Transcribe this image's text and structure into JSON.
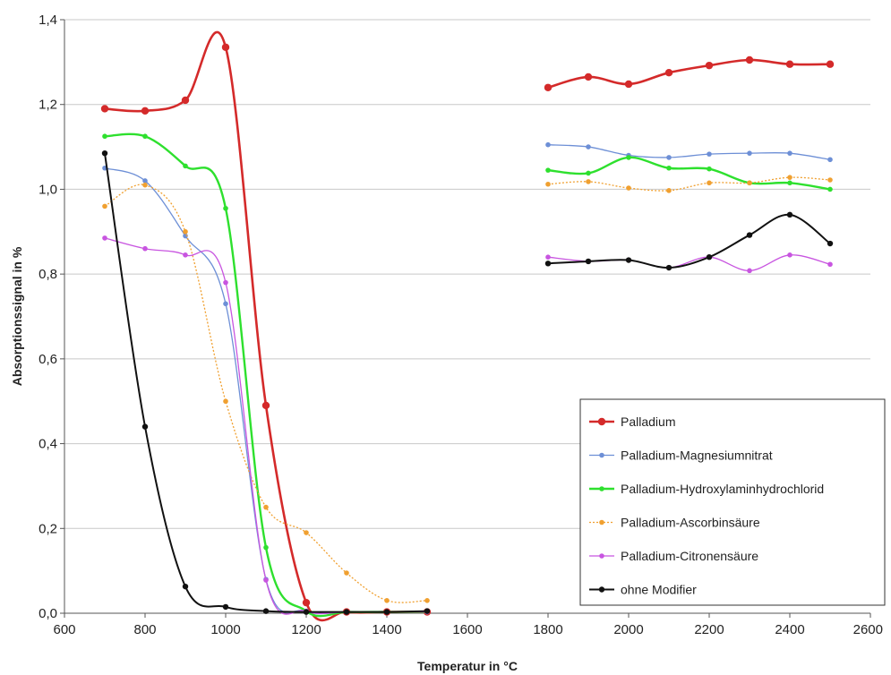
{
  "chart_data": {
    "type": "line",
    "title": "",
    "xlabel": "Temperatur in °C",
    "ylabel": "Absorptionssignal in %",
    "xlim": [
      600,
      2600
    ],
    "ylim": [
      0,
      1.4
    ],
    "x_ticks": [
      600,
      800,
      1000,
      1200,
      1400,
      1600,
      1800,
      2000,
      2200,
      2400,
      2600
    ],
    "x_tick_labels": [
      "600",
      "800",
      "1000",
      "1200",
      "1400",
      "1600",
      "1800",
      "2000",
      "2200",
      "2400",
      "2600"
    ],
    "y_ticks": [
      0,
      0.2,
      0.4,
      0.6,
      0.8,
      1.0,
      1.2,
      1.4
    ],
    "y_tick_labels": [
      "0,0",
      "0,2",
      "0,4",
      "0,6",
      "0,8",
      "1,0",
      "1,2",
      "1,4"
    ],
    "grid": "horizontal",
    "legend_position": "bottom-right",
    "smooth": true,
    "series": [
      {
        "name": "Palladium",
        "color": "#d42a2a",
        "segments": [
          [
            [
              700,
              1.19
            ],
            [
              800,
              1.185
            ],
            [
              900,
              1.21
            ],
            [
              1000,
              1.335
            ],
            [
              1100,
              0.49
            ],
            [
              1200,
              0.025
            ],
            [
              1300,
              0.003
            ],
            [
              1400,
              0.003
            ],
            [
              1500,
              0.003
            ]
          ],
          [
            [
              1800,
              1.24
            ],
            [
              1900,
              1.265
            ],
            [
              2000,
              1.248
            ],
            [
              2100,
              1.275
            ],
            [
              2200,
              1.292
            ],
            [
              2300,
              1.305
            ],
            [
              2400,
              1.295
            ],
            [
              2500,
              1.295
            ]
          ]
        ]
      },
      {
        "name": "Palladium-Magnesiumnitrat",
        "color": "#6d8fd6",
        "segments": [
          [
            [
              700,
              1.05
            ],
            [
              800,
              1.02
            ],
            [
              900,
              0.89
            ],
            [
              1000,
              0.73
            ],
            [
              1100,
              0.08
            ],
            [
              1200,
              0.005
            ],
            [
              1300,
              0.003
            ],
            [
              1400,
              0.003
            ],
            [
              1500,
              0.003
            ]
          ],
          [
            [
              1800,
              1.105
            ],
            [
              1900,
              1.1
            ],
            [
              2000,
              1.08
            ],
            [
              2100,
              1.075
            ],
            [
              2200,
              1.083
            ],
            [
              2300,
              1.085
            ],
            [
              2400,
              1.085
            ],
            [
              2500,
              1.07
            ]
          ]
        ]
      },
      {
        "name": "Palladium-Hydroxylaminhydrochlorid",
        "color": "#2ee02e",
        "segments": [
          [
            [
              700,
              1.125
            ],
            [
              800,
              1.125
            ],
            [
              900,
              1.055
            ],
            [
              1000,
              0.955
            ],
            [
              1100,
              0.155
            ],
            [
              1200,
              0.005
            ],
            [
              1300,
              0.003
            ],
            [
              1400,
              0.003
            ],
            [
              1500,
              0.003
            ]
          ],
          [
            [
              1800,
              1.045
            ],
            [
              1900,
              1.038
            ],
            [
              2000,
              1.075
            ],
            [
              2100,
              1.05
            ],
            [
              2200,
              1.048
            ],
            [
              2300,
              1.015
            ],
            [
              2400,
              1.015
            ],
            [
              2500,
              1.0
            ]
          ]
        ]
      },
      {
        "name": "Palladium-Ascorbinsäure",
        "color": "#f0a030",
        "segments": [
          [
            [
              700,
              0.96
            ],
            [
              800,
              1.01
            ],
            [
              900,
              0.9
            ],
            [
              1000,
              0.5
            ],
            [
              1100,
              0.25
            ],
            [
              1200,
              0.19
            ],
            [
              1300,
              0.095
            ],
            [
              1400,
              0.03
            ],
            [
              1500,
              0.03
            ]
          ],
          [
            [
              1800,
              1.012
            ],
            [
              1900,
              1.018
            ],
            [
              2000,
              1.003
            ],
            [
              2100,
              0.997
            ],
            [
              2200,
              1.015
            ],
            [
              2300,
              1.015
            ],
            [
              2400,
              1.028
            ],
            [
              2500,
              1.022
            ]
          ]
        ]
      },
      {
        "name": "Palladium-Citronensäure",
        "color": "#c855e0",
        "segments": [
          [
            [
              700,
              0.885
            ],
            [
              800,
              0.86
            ],
            [
              900,
              0.845
            ],
            [
              1000,
              0.78
            ],
            [
              1100,
              0.078
            ],
            [
              1200,
              0.005
            ],
            [
              1300,
              0.003
            ],
            [
              1400,
              0.003
            ],
            [
              1500,
              0.003
            ]
          ],
          [
            [
              1800,
              0.84
            ],
            [
              1900,
              0.83
            ],
            [
              2000,
              0.833
            ],
            [
              2100,
              0.815
            ],
            [
              2200,
              0.84
            ],
            [
              2300,
              0.808
            ],
            [
              2400,
              0.845
            ],
            [
              2500,
              0.823
            ]
          ]
        ]
      },
      {
        "name": "ohne Modifier",
        "color": "#111111",
        "segments": [
          [
            [
              700,
              1.085
            ],
            [
              800,
              0.44
            ],
            [
              900,
              0.063
            ],
            [
              1000,
              0.015
            ],
            [
              1100,
              0.005
            ],
            [
              1200,
              0.003
            ],
            [
              1300,
              0.003
            ],
            [
              1400,
              0.003
            ],
            [
              1500,
              0.005
            ]
          ],
          [
            [
              1800,
              0.825
            ],
            [
              1900,
              0.83
            ],
            [
              2000,
              0.833
            ],
            [
              2100,
              0.815
            ],
            [
              2200,
              0.84
            ],
            [
              2300,
              0.892
            ],
            [
              2400,
              0.94
            ],
            [
              2500,
              0.872
            ]
          ]
        ]
      }
    ]
  }
}
